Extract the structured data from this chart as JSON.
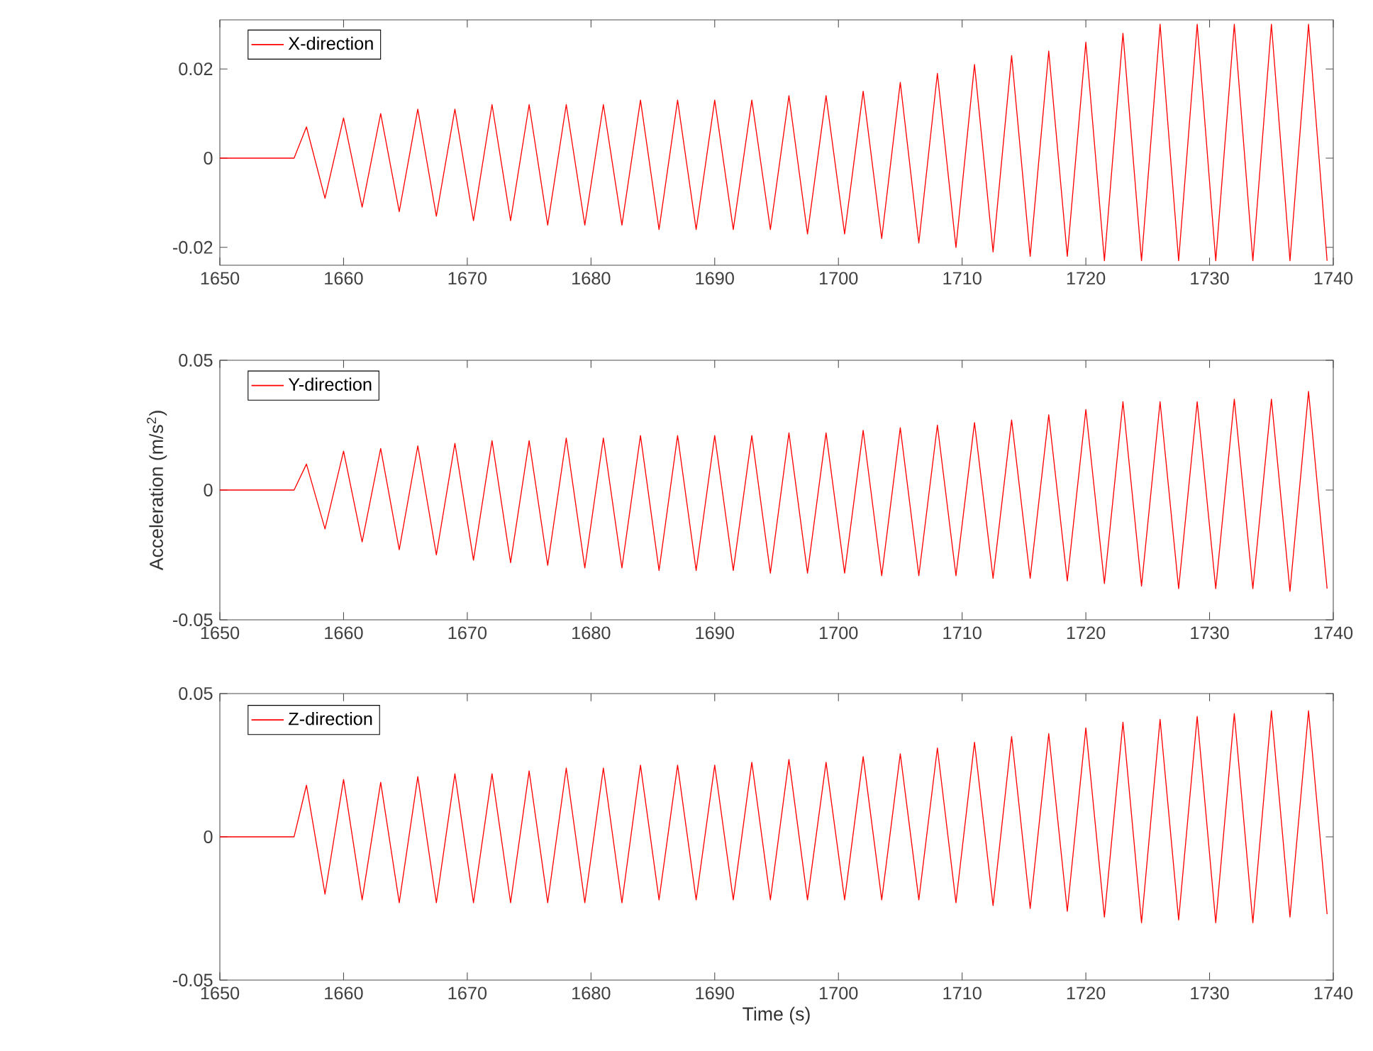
{
  "chart_data": [
    {
      "type": "line",
      "legend": "top left",
      "x": [
        1650,
        1656,
        1657,
        1658.5,
        1660,
        1661.5,
        1663,
        1664.5,
        1666,
        1667.5,
        1669,
        1670.5,
        1672,
        1673.5,
        1675,
        1676.5,
        1678,
        1679.5,
        1681,
        1682.5,
        1684,
        1685.5,
        1687,
        1688.5,
        1690,
        1691.5,
        1693,
        1694.5,
        1696,
        1697.5,
        1699,
        1700.5,
        1702,
        1703.5,
        1705,
        1706.5,
        1708,
        1709.5,
        1711,
        1712.5,
        1714,
        1715.5,
        1717,
        1718.5,
        1720,
        1721.5,
        1723,
        1724.5,
        1726,
        1727.5,
        1729,
        1730.5,
        1732,
        1733.5,
        1735,
        1736.5,
        1738,
        1739.5
      ],
      "series": [
        {
          "name": "X-direction",
          "color": "#ff0000",
          "values": [
            0,
            0,
            0.007,
            -0.009,
            0.009,
            -0.011,
            0.01,
            -0.012,
            0.011,
            -0.013,
            0.011,
            -0.014,
            0.012,
            -0.014,
            0.012,
            -0.015,
            0.012,
            -0.015,
            0.012,
            -0.015,
            0.013,
            -0.016,
            0.013,
            -0.016,
            0.013,
            -0.016,
            0.013,
            -0.016,
            0.014,
            -0.017,
            0.014,
            -0.017,
            0.015,
            -0.018,
            0.017,
            -0.019,
            0.019,
            -0.02,
            0.021,
            -0.021,
            0.023,
            -0.022,
            0.024,
            -0.022,
            0.026,
            -0.023,
            0.028,
            -0.023,
            0.03,
            -0.023,
            0.03,
            -0.023,
            0.03,
            -0.023,
            0.03,
            -0.023,
            0.03,
            -0.023
          ]
        }
      ],
      "xlim": [
        1650,
        1740
      ],
      "xticks": [
        1650,
        1660,
        1670,
        1680,
        1690,
        1700,
        1710,
        1720,
        1730,
        1740
      ],
      "ylim": [
        -0.024,
        0.031
      ],
      "yticks": [
        -0.02,
        0,
        0.02
      ]
    },
    {
      "type": "line",
      "legend": "top left",
      "ylabel": "Acceleration (m/s$^{2}$)",
      "x": [
        1650,
        1656,
        1657,
        1658.5,
        1660,
        1661.5,
        1663,
        1664.5,
        1666,
        1667.5,
        1669,
        1670.5,
        1672,
        1673.5,
        1675,
        1676.5,
        1678,
        1679.5,
        1681,
        1682.5,
        1684,
        1685.5,
        1687,
        1688.5,
        1690,
        1691.5,
        1693,
        1694.5,
        1696,
        1697.5,
        1699,
        1700.5,
        1702,
        1703.5,
        1705,
        1706.5,
        1708,
        1709.5,
        1711,
        1712.5,
        1714,
        1715.5,
        1717,
        1718.5,
        1720,
        1721.5,
        1723,
        1724.5,
        1726,
        1727.5,
        1729,
        1730.5,
        1732,
        1733.5,
        1735,
        1736.5,
        1738,
        1739.5
      ],
      "series": [
        {
          "name": "Y-direction",
          "color": "#ff0000",
          "values": [
            0,
            0,
            0.01,
            -0.015,
            0.015,
            -0.02,
            0.016,
            -0.023,
            0.017,
            -0.025,
            0.018,
            -0.027,
            0.019,
            -0.028,
            0.019,
            -0.029,
            0.02,
            -0.03,
            0.02,
            -0.03,
            0.021,
            -0.031,
            0.021,
            -0.031,
            0.021,
            -0.031,
            0.021,
            -0.032,
            0.022,
            -0.032,
            0.022,
            -0.032,
            0.023,
            -0.033,
            0.024,
            -0.033,
            0.025,
            -0.033,
            0.026,
            -0.034,
            0.027,
            -0.034,
            0.029,
            -0.035,
            0.031,
            -0.036,
            0.034,
            -0.037,
            0.034,
            -0.038,
            0.034,
            -0.038,
            0.035,
            -0.038,
            0.035,
            -0.039,
            0.038,
            -0.038
          ]
        }
      ],
      "xlim": [
        1650,
        1740
      ],
      "xticks": [
        1650,
        1660,
        1670,
        1680,
        1690,
        1700,
        1710,
        1720,
        1730,
        1740
      ],
      "ylim": [
        -0.05,
        0.05
      ],
      "yticks": [
        -0.05,
        0,
        0.05
      ]
    },
    {
      "type": "line",
      "legend": "top left",
      "xlabel": "Time (s)",
      "x": [
        1650,
        1656,
        1657,
        1658.5,
        1660,
        1661.5,
        1663,
        1664.5,
        1666,
        1667.5,
        1669,
        1670.5,
        1672,
        1673.5,
        1675,
        1676.5,
        1678,
        1679.5,
        1681,
        1682.5,
        1684,
        1685.5,
        1687,
        1688.5,
        1690,
        1691.5,
        1693,
        1694.5,
        1696,
        1697.5,
        1699,
        1700.5,
        1702,
        1703.5,
        1705,
        1706.5,
        1708,
        1709.5,
        1711,
        1712.5,
        1714,
        1715.5,
        1717,
        1718.5,
        1720,
        1721.5,
        1723,
        1724.5,
        1726,
        1727.5,
        1729,
        1730.5,
        1732,
        1733.5,
        1735,
        1736.5,
        1738,
        1739.5
      ],
      "series": [
        {
          "name": "Z-direction",
          "color": "#ff0000",
          "values": [
            0,
            0,
            0.018,
            -0.02,
            0.02,
            -0.022,
            0.019,
            -0.023,
            0.021,
            -0.023,
            0.022,
            -0.023,
            0.022,
            -0.023,
            0.023,
            -0.023,
            0.024,
            -0.023,
            0.024,
            -0.023,
            0.025,
            -0.022,
            0.025,
            -0.022,
            0.025,
            -0.022,
            0.026,
            -0.022,
            0.027,
            -0.022,
            0.026,
            -0.022,
            0.028,
            -0.022,
            0.029,
            -0.022,
            0.031,
            -0.023,
            0.033,
            -0.024,
            0.035,
            -0.025,
            0.036,
            -0.026,
            0.038,
            -0.028,
            0.04,
            -0.03,
            0.041,
            -0.029,
            0.042,
            -0.03,
            0.043,
            -0.03,
            0.044,
            -0.028,
            0.044,
            -0.027
          ]
        }
      ],
      "xlim": [
        1650,
        1740
      ],
      "xticks": [
        1650,
        1660,
        1670,
        1680,
        1690,
        1700,
        1710,
        1720,
        1730,
        1740
      ],
      "ylim": [
        -0.05,
        0.05
      ],
      "yticks": [
        -0.05,
        0,
        0.05
      ]
    }
  ]
}
